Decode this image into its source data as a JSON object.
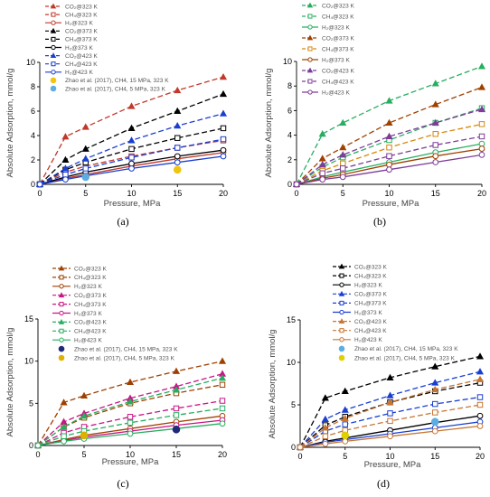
{
  "chart_data": [
    {
      "panel": "(a)",
      "type": "line",
      "xlabel": "Pressure, MPa",
      "ylabel": "Absolute Adsorption, mmol/g",
      "xlim": [
        0,
        20
      ],
      "ylim": [
        0,
        10
      ],
      "xticks": [
        0,
        5,
        10,
        15,
        20
      ],
      "yticks": [
        0,
        2,
        4,
        6,
        8,
        10
      ],
      "legend_position": "top-left",
      "series": [
        {
          "name": "CO₂@323 K",
          "color": "#c0392b",
          "marker": "triangle",
          "fill": true,
          "dash": "6,3",
          "x": [
            0,
            2.8,
            5,
            10,
            15,
            20
          ],
          "y": [
            0,
            3.9,
            4.7,
            6.4,
            7.7,
            8.8
          ]
        },
        {
          "name": "CH₄@323 K",
          "color": "#c0392b",
          "marker": "square",
          "fill": false,
          "dash": "6,3",
          "x": [
            0,
            2.8,
            5,
            10,
            15,
            20
          ],
          "y": [
            0,
            1.0,
            1.5,
            2.3,
            3.0,
            3.6
          ]
        },
        {
          "name": "H₂@323 K",
          "color": "#c0392b",
          "marker": "circle",
          "fill": false,
          "dash": "",
          "x": [
            0,
            2.8,
            5,
            10,
            15,
            20
          ],
          "y": [
            0,
            0.5,
            0.8,
            1.5,
            2.1,
            2.6
          ]
        },
        {
          "name": "CO₂@373 K",
          "color": "#000000",
          "marker": "triangle",
          "fill": true,
          "dash": "6,3",
          "x": [
            0,
            2.8,
            5,
            10,
            15,
            20
          ],
          "y": [
            0,
            2.0,
            2.9,
            4.6,
            6.0,
            7.4
          ]
        },
        {
          "name": "CH₄@373 K",
          "color": "#000000",
          "marker": "square",
          "fill": false,
          "dash": "6,3",
          "x": [
            0,
            2.8,
            5,
            10,
            15,
            20
          ],
          "y": [
            0,
            1.2,
            1.8,
            2.9,
            3.8,
            4.6
          ]
        },
        {
          "name": "H₂@373 K",
          "color": "#000000",
          "marker": "circle",
          "fill": false,
          "dash": "",
          "x": [
            0,
            2.8,
            5,
            10,
            15,
            20
          ],
          "y": [
            0,
            0.6,
            1.0,
            1.7,
            2.3,
            2.8
          ]
        },
        {
          "name": "CO₂@423 K",
          "color": "#1a3fd0",
          "marker": "triangle",
          "fill": true,
          "dash": "6,3",
          "x": [
            0,
            2.8,
            5,
            10,
            15,
            20
          ],
          "y": [
            0,
            1.3,
            2.1,
            3.6,
            4.8,
            5.8
          ]
        },
        {
          "name": "CH₄@423 K",
          "color": "#1a3fd0",
          "marker": "square",
          "fill": false,
          "dash": "6,3",
          "x": [
            0,
            2.8,
            5,
            10,
            15,
            20
          ],
          "y": [
            0,
            0.8,
            1.3,
            2.2,
            3.0,
            3.7
          ]
        },
        {
          "name": "H₂@423 K",
          "color": "#1a3fd0",
          "marker": "circle",
          "fill": false,
          "dash": "",
          "x": [
            0,
            2.8,
            5,
            10,
            15,
            20
          ],
          "y": [
            0,
            0.4,
            0.7,
            1.3,
            1.8,
            2.3
          ]
        },
        {
          "name": "Zhao et al. (2017), CH4, 15 MPa, 323 K",
          "color": "#f1c40f",
          "marker": "dot",
          "fill": true,
          "dash": "none",
          "x": [
            15
          ],
          "y": [
            1.2
          ]
        },
        {
          "name": "Zhao et al. (2017), CH4, 5 MPa, 323 K",
          "color": "#5dade2",
          "marker": "dot",
          "fill": true,
          "dash": "none",
          "x": [
            5
          ],
          "y": [
            0.6
          ]
        }
      ]
    },
    {
      "panel": "(b)",
      "type": "line",
      "xlabel": "Pressure, MPa",
      "ylabel": "Absolute Adsorption, mmol/g",
      "xlim": [
        0,
        20
      ],
      "ylim": [
        0,
        10
      ],
      "xticks": [
        0,
        5,
        10,
        15,
        20
      ],
      "yticks": [
        0,
        2,
        4,
        6,
        8,
        10
      ],
      "legend_position": "top-left",
      "series": [
        {
          "name": "CO₂@323 K",
          "color": "#27ae60",
          "marker": "triangle",
          "fill": true,
          "dash": "6,3",
          "x": [
            0,
            2.8,
            5,
            10,
            15,
            20
          ],
          "y": [
            0,
            4.1,
            5.0,
            6.8,
            8.2,
            9.6
          ]
        },
        {
          "name": "CH₄@323 K",
          "color": "#27ae60",
          "marker": "square",
          "fill": false,
          "dash": "6,3",
          "x": [
            0,
            2.8,
            5,
            10,
            15,
            20
          ],
          "y": [
            0,
            1.4,
            2.2,
            3.6,
            5.0,
            6.2
          ]
        },
        {
          "name": "H₂@323 K",
          "color": "#27ae60",
          "marker": "circle",
          "fill": false,
          "dash": "",
          "x": [
            0,
            2.8,
            5,
            10,
            15,
            20
          ],
          "y": [
            0,
            0.6,
            1.0,
            1.8,
            2.6,
            3.3
          ]
        },
        {
          "name": "CO₂@373 K",
          "color": "#a04000",
          "marker": "triangle",
          "fill": true,
          "dash": "6,3",
          "x": [
            0,
            2.8,
            5,
            10,
            15,
            20
          ],
          "y": [
            0,
            2.1,
            3.0,
            5.0,
            6.5,
            7.9
          ]
        },
        {
          "name": "CH₄@373 K",
          "color": "#d68910",
          "marker": "square",
          "fill": false,
          "dash": "6,3",
          "x": [
            0,
            2.8,
            5,
            10,
            15,
            20
          ],
          "y": [
            0,
            1.1,
            1.7,
            3.0,
            4.1,
            4.9
          ]
        },
        {
          "name": "H₂@373 K",
          "color": "#a04000",
          "marker": "circle",
          "fill": false,
          "dash": "",
          "x": [
            0,
            2.8,
            5,
            10,
            15,
            20
          ],
          "y": [
            0,
            0.5,
            0.8,
            1.6,
            2.3,
            2.9
          ]
        },
        {
          "name": "CO₂@423 K",
          "color": "#7d3c98",
          "marker": "triangle",
          "fill": true,
          "dash": "6,3",
          "x": [
            0,
            2.8,
            5,
            10,
            15,
            20
          ],
          "y": [
            0,
            1.6,
            2.4,
            3.9,
            5.0,
            6.1
          ]
        },
        {
          "name": "CH₄@423 K",
          "color": "#7d3c98",
          "marker": "square",
          "fill": false,
          "dash": "6,3",
          "x": [
            0,
            2.8,
            5,
            10,
            15,
            20
          ],
          "y": [
            0,
            0.9,
            1.3,
            2.3,
            3.2,
            3.9
          ]
        },
        {
          "name": "H₂@423 K",
          "color": "#7d3c98",
          "marker": "circle",
          "fill": false,
          "dash": "",
          "x": [
            0,
            2.8,
            5,
            10,
            15,
            20
          ],
          "y": [
            0,
            0.4,
            0.6,
            1.2,
            1.8,
            2.4
          ]
        }
      ]
    },
    {
      "panel": "(c)",
      "type": "line",
      "xlabel": "Pressure, MPa",
      "ylabel": "Absolute Adsorption, mmol/g",
      "xlim": [
        0,
        20
      ],
      "ylim": [
        0,
        15
      ],
      "xticks": [
        0,
        5,
        10,
        15,
        20
      ],
      "yticks": [
        0,
        5,
        10,
        15
      ],
      "legend_position": "top-left",
      "series": [
        {
          "name": "CO₂@323 K",
          "color": "#a04000",
          "marker": "triangle",
          "fill": true,
          "dash": "6,3",
          "x": [
            0,
            2.8,
            5,
            10,
            15,
            20
          ],
          "y": [
            0,
            5.1,
            5.9,
            7.5,
            8.8,
            10.0
          ]
        },
        {
          "name": "CH₄@323 K",
          "color": "#a04000",
          "marker": "square",
          "fill": false,
          "dash": "6,3",
          "x": [
            0,
            2.8,
            5,
            10,
            15,
            20
          ],
          "y": [
            0,
            2.2,
            3.3,
            5.0,
            6.2,
            7.2
          ]
        },
        {
          "name": "H₂@323 K",
          "color": "#a04000",
          "marker": "circle",
          "fill": false,
          "dash": "",
          "x": [
            0,
            2.8,
            5,
            10,
            15,
            20
          ],
          "y": [
            0,
            0.7,
            1.2,
            2.0,
            2.8,
            3.5
          ]
        },
        {
          "name": "CO₂@373 K",
          "color": "#c71585",
          "marker": "triangle",
          "fill": true,
          "dash": "6,3",
          "x": [
            0,
            2.8,
            5,
            10,
            15,
            20
          ],
          "y": [
            0,
            2.8,
            3.8,
            5.6,
            7.0,
            8.5
          ]
        },
        {
          "name": "CH₄@373 K",
          "color": "#c71585",
          "marker": "square",
          "fill": false,
          "dash": "6,3",
          "x": [
            0,
            2.8,
            5,
            10,
            15,
            20
          ],
          "y": [
            0,
            1.5,
            2.2,
            3.4,
            4.4,
            5.3
          ]
        },
        {
          "name": "H₂@373 K",
          "color": "#c71585",
          "marker": "circle",
          "fill": false,
          "dash": "",
          "x": [
            0,
            2.8,
            5,
            10,
            15,
            20
          ],
          "y": [
            0,
            0.6,
            1.0,
            1.7,
            2.4,
            3.0
          ]
        },
        {
          "name": "CO₂@423 K",
          "color": "#27ae60",
          "marker": "triangle",
          "fill": true,
          "dash": "6,3",
          "x": [
            0,
            2.8,
            5,
            10,
            15,
            20
          ],
          "y": [
            0,
            2.2,
            3.5,
            5.2,
            6.6,
            8.0
          ]
        },
        {
          "name": "CH₄@423 K",
          "color": "#27ae60",
          "marker": "square",
          "fill": false,
          "dash": "6,3",
          "x": [
            0,
            2.8,
            5,
            10,
            15,
            20
          ],
          "y": [
            0,
            1.1,
            1.7,
            2.7,
            3.6,
            4.4
          ]
        },
        {
          "name": "H₂@423 K",
          "color": "#27ae60",
          "marker": "circle",
          "fill": false,
          "dash": "",
          "x": [
            0,
            2.8,
            5,
            10,
            15,
            20
          ],
          "y": [
            0,
            0.5,
            0.8,
            1.4,
            2.0,
            2.6
          ]
        },
        {
          "name": "Zhao et al. (2017), CH4, 15 MPa, 323 K",
          "color": "#1f2a7a",
          "marker": "dot",
          "fill": true,
          "dash": "none",
          "x": [
            15
          ],
          "y": [
            1.9
          ]
        },
        {
          "name": "Zhao et al. (2017), CH4, 5 MPa, 323 K",
          "color": "#e0b000",
          "marker": "dot",
          "fill": true,
          "dash": "none",
          "x": [
            5
          ],
          "y": [
            1.2
          ]
        }
      ]
    },
    {
      "panel": "(d)",
      "type": "line",
      "xlabel": "Pressure, MPa",
      "ylabel": "Absolute Adsorption, mmol/g",
      "xlim": [
        0,
        20
      ],
      "ylim": [
        0,
        15
      ],
      "xticks": [
        0,
        5,
        10,
        15,
        20
      ],
      "yticks": [
        0,
        5,
        10,
        15
      ],
      "legend_position": "top-left",
      "series": [
        {
          "name": "CO₂@323 K",
          "color": "#000000",
          "marker": "triangle",
          "fill": true,
          "dash": "6,3",
          "x": [
            0,
            2.8,
            5,
            10,
            15,
            20
          ],
          "y": [
            0,
            5.8,
            6.6,
            8.2,
            9.5,
            10.7
          ]
        },
        {
          "name": "CH₄@323 K",
          "color": "#000000",
          "marker": "square",
          "fill": false,
          "dash": "6,3",
          "x": [
            0,
            2.8,
            5,
            10,
            15,
            20
          ],
          "y": [
            0,
            2.6,
            3.6,
            5.3,
            6.6,
            7.6
          ]
        },
        {
          "name": "H₂@323 K",
          "color": "#000000",
          "marker": "circle",
          "fill": false,
          "dash": "",
          "x": [
            0,
            2.8,
            5,
            10,
            15,
            20
          ],
          "y": [
            0,
            0.7,
            1.1,
            2.0,
            2.9,
            3.7
          ]
        },
        {
          "name": "CO₂@373 K",
          "color": "#1a3fd0",
          "marker": "triangle",
          "fill": true,
          "dash": "6,3",
          "x": [
            0,
            2.8,
            5,
            10,
            15,
            20
          ],
          "y": [
            0,
            3.3,
            4.4,
            6.1,
            7.6,
            8.9
          ]
        },
        {
          "name": "CH₄@373 K",
          "color": "#1a3fd0",
          "marker": "square",
          "fill": false,
          "dash": "6,3",
          "x": [
            0,
            2.8,
            5,
            10,
            15,
            20
          ],
          "y": [
            0,
            1.9,
            2.7,
            4.0,
            5.1,
            5.9
          ]
        },
        {
          "name": "H₂@373 K",
          "color": "#1a3fd0",
          "marker": "circle",
          "fill": false,
          "dash": "",
          "x": [
            0,
            2.8,
            5,
            10,
            15,
            20
          ],
          "y": [
            0,
            0.6,
            0.9,
            1.6,
            2.3,
            3.0
          ]
        },
        {
          "name": "CO₂@423 K",
          "color": "#c87533",
          "marker": "triangle",
          "fill": true,
          "dash": "6,3",
          "x": [
            0,
            2.8,
            5,
            10,
            15,
            20
          ],
          "y": [
            0,
            2.3,
            3.4,
            5.3,
            6.8,
            8.0
          ]
        },
        {
          "name": "CH₄@423 K",
          "color": "#c87533",
          "marker": "square",
          "fill": false,
          "dash": "6,3",
          "x": [
            0,
            2.8,
            5,
            10,
            15,
            20
          ],
          "y": [
            0,
            1.3,
            2.0,
            3.1,
            4.1,
            5.0
          ]
        },
        {
          "name": "H₂@423 K",
          "color": "#c87533",
          "marker": "circle",
          "fill": false,
          "dash": "",
          "x": [
            0,
            2.8,
            5,
            10,
            15,
            20
          ],
          "y": [
            0,
            0.4,
            0.7,
            1.3,
            1.9,
            2.5
          ]
        },
        {
          "name": "Zhao et al. (2017), CH4, 15 MPa, 323 K",
          "color": "#5dade2",
          "marker": "dot",
          "fill": true,
          "dash": "none",
          "x": [
            15
          ],
          "y": [
            3.0
          ]
        },
        {
          "name": "Zhao et al. (2017), CH4, 5 MPa, 323 K",
          "color": "#e0d000",
          "marker": "dot",
          "fill": true,
          "dash": "none",
          "x": [
            5
          ],
          "y": [
            1.4
          ]
        }
      ]
    }
  ]
}
